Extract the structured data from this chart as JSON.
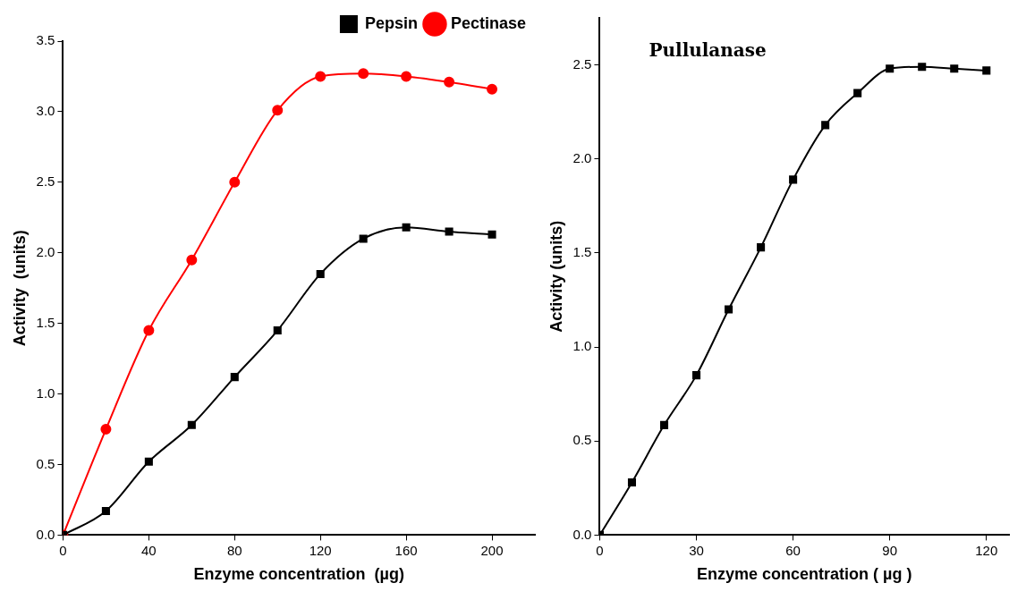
{
  "chart_data": [
    {
      "type": "line",
      "xlabel": "Enzyme concentration  (µg)",
      "ylabel": "Activity  (units)",
      "x": [
        0,
        20,
        40,
        60,
        80,
        100,
        120,
        140,
        160,
        180,
        200
      ],
      "series": [
        {
          "name": "Pepsin",
          "color": "#000000",
          "marker": "square",
          "values": [
            0,
            0.17,
            0.52,
            0.78,
            1.12,
            1.45,
            1.85,
            2.1,
            2.18,
            2.15,
            2.13
          ]
        },
        {
          "name": "Pectinase",
          "color": "#ff0000",
          "marker": "circle",
          "values": [
            0,
            0.75,
            1.45,
            1.95,
            2.5,
            3.01,
            3.25,
            3.27,
            3.25,
            3.21,
            3.16
          ]
        }
      ],
      "xlim": [
        0,
        220
      ],
      "xticks": [
        0,
        40,
        80,
        120,
        160,
        200
      ],
      "ylim": [
        0,
        3.5
      ],
      "yticks": [
        {
          "value": 0,
          "label": "0.0"
        },
        {
          "value": 0.5,
          "label": "0.5"
        },
        {
          "value": 1,
          "label": "1.0"
        },
        {
          "value": 1.5,
          "label": "1.5"
        },
        {
          "value": 2,
          "label": "2.0"
        },
        {
          "value": 2.5,
          "label": "2.5"
        },
        {
          "value": 3,
          "label": "3.0"
        },
        {
          "value": 3.5,
          "label": "3.5"
        }
      ],
      "grid": false,
      "legend": "top right",
      "line_style": "solid"
    },
    {
      "type": "line",
      "title": "Pullulanase",
      "xlabel": "Enzyme concentration ( µg )",
      "ylabel": "Activity (units)",
      "x": [
        0,
        10,
        20,
        30,
        40,
        50,
        60,
        70,
        80,
        90,
        100,
        110,
        120
      ],
      "series": [
        {
          "color": "#000000",
          "marker": "square",
          "values": [
            0,
            0.28,
            0.585,
            0.85,
            1.2,
            1.53,
            1.89,
            2.18,
            2.35,
            2.48,
            2.49,
            2.48,
            2.47
          ]
        }
      ],
      "xlim": [
        0,
        127
      ],
      "xticks": [
        0,
        30,
        60,
        90,
        120
      ],
      "ylim": [
        0,
        2.75
      ],
      "yticks": [
        {
          "value": 0,
          "label": "0.0"
        },
        {
          "value": 0.5,
          "label": "0.5"
        },
        {
          "value": 1,
          "label": "1.0"
        },
        {
          "value": 1.5,
          "label": "1.5"
        },
        {
          "value": 2,
          "label": "2.0"
        },
        {
          "value": 2.5,
          "label": "2.5"
        }
      ],
      "grid": false,
      "legend": false,
      "line_style": "solid"
    }
  ]
}
